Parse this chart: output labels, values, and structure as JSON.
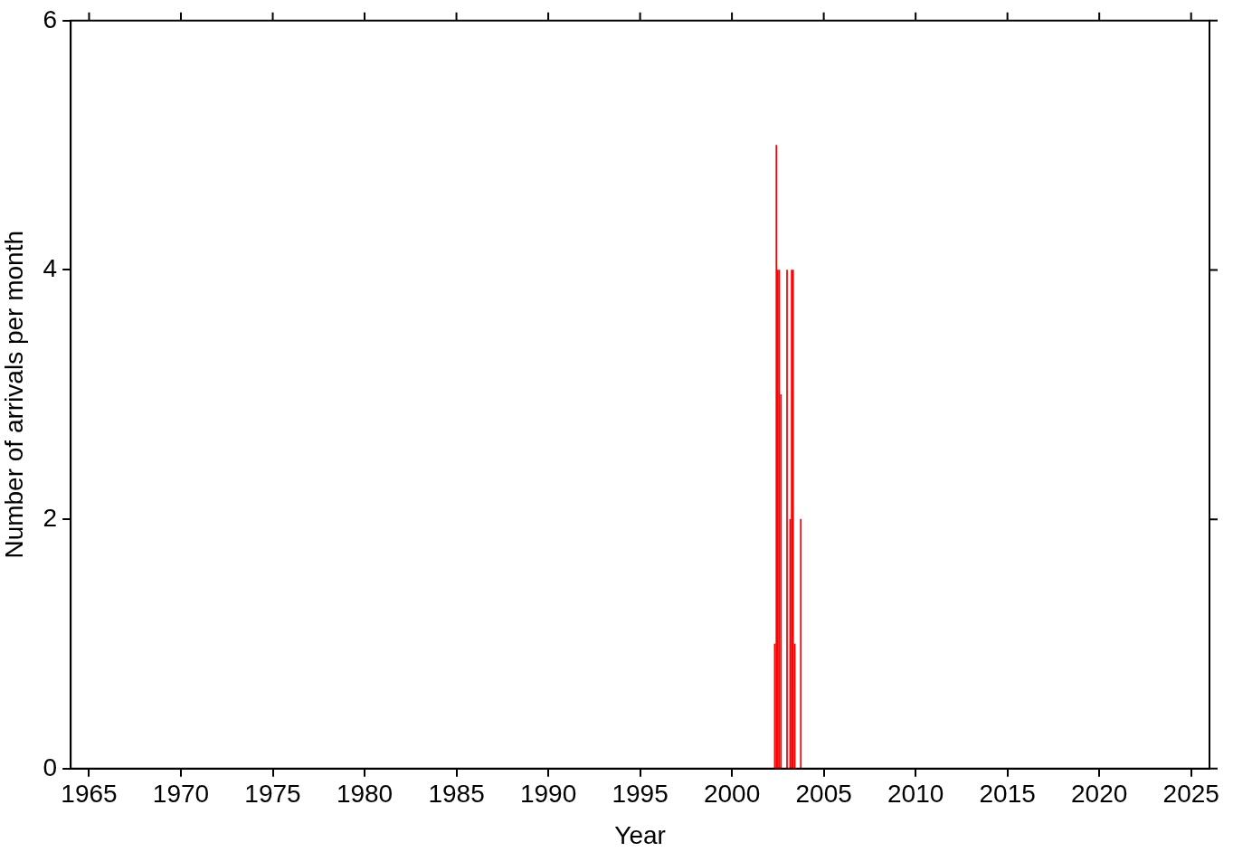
{
  "chart_data": {
    "type": "bar",
    "xlabel": "Year",
    "ylabel": "Number of arrivals per month",
    "x": [
      2002.33,
      2002.42,
      2002.5,
      2002.58,
      2002.67,
      2003.0,
      2003.17,
      2003.25,
      2003.33,
      2003.42,
      2003.75
    ],
    "series": [
      {
        "color": "#ff0000",
        "values": [
          1,
          5,
          4,
          4,
          3,
          4,
          2,
          4,
          4,
          1,
          2
        ]
      }
    ],
    "xlim": [
      1964,
      2026
    ],
    "xticks": [
      1965,
      1970,
      1975,
      1980,
      1985,
      1990,
      1995,
      2000,
      2005,
      2010,
      2015,
      2020,
      2025
    ],
    "ylim": [
      0,
      6
    ],
    "yticks": [
      0,
      2,
      4,
      6
    ],
    "grid": false,
    "legend": false
  }
}
